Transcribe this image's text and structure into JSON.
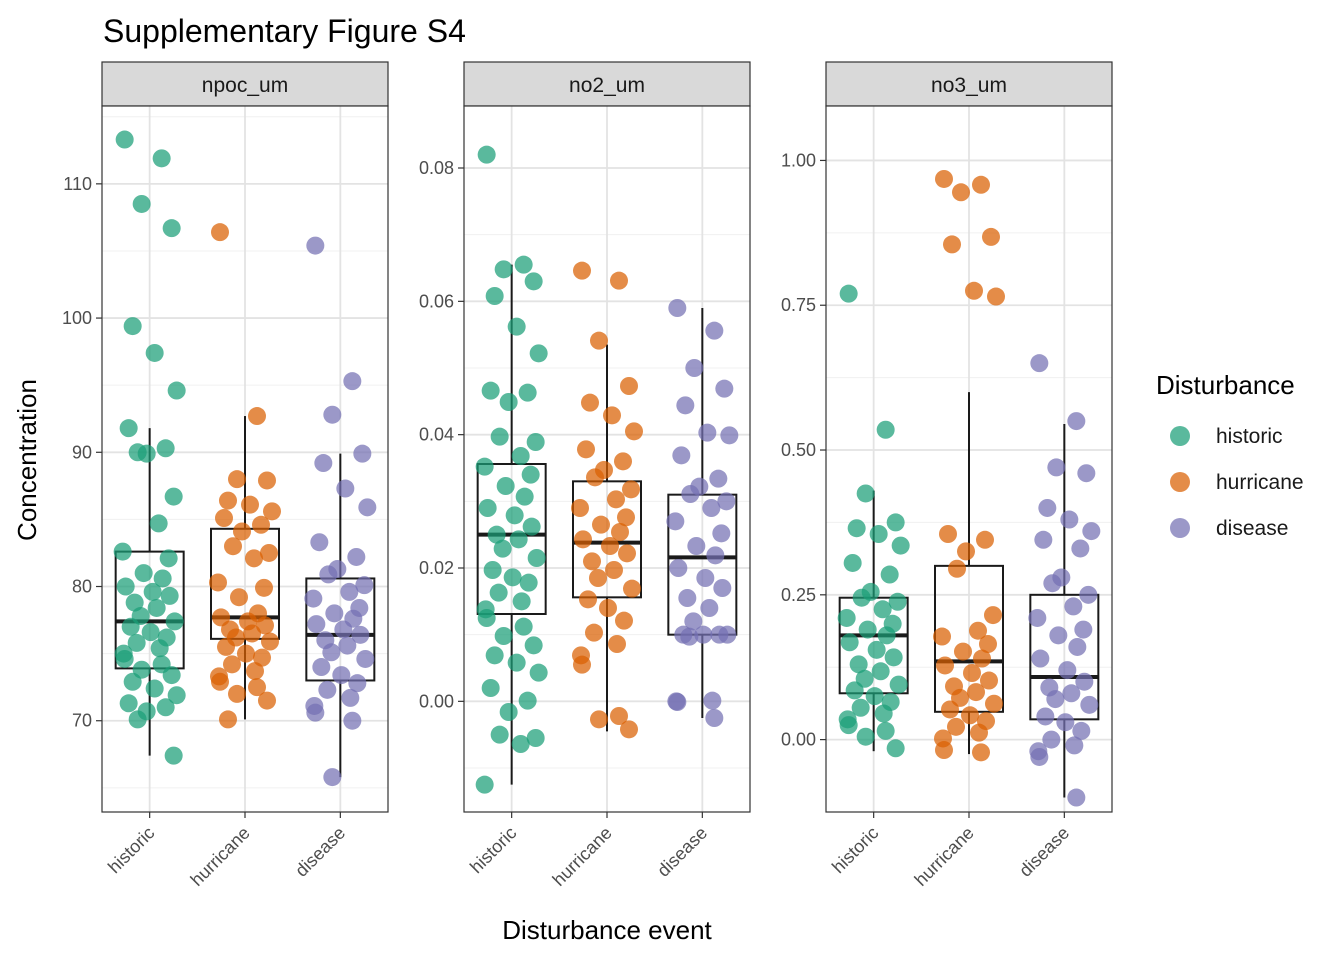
{
  "title": "Supplementary Figure S4",
  "chart_data": {
    "type": "boxplot-jitter",
    "title": "Supplementary Figure S4",
    "xlabel": "Disturbance event",
    "ylabel": "Concentration",
    "categories": [
      "historic",
      "hurricane",
      "disease"
    ],
    "legend": {
      "title": "Disturbance",
      "position": "right",
      "entries": [
        {
          "label": "historic",
          "color": "#1b9e77"
        },
        {
          "label": "hurricane",
          "color": "#d95f02"
        },
        {
          "label": "disease",
          "color": "#7570b3"
        }
      ]
    },
    "grid": true,
    "panels": [
      {
        "strip": "npoc_um",
        "ylim": [
          63.2,
          115.8
        ],
        "yticks": [
          70,
          80,
          90,
          100,
          110
        ],
        "ytick_labels": [
          "70",
          "80",
          "90",
          "100",
          "110"
        ],
        "boxes": [
          {
            "q1": 73.9,
            "median": 77.4,
            "q3": 82.6,
            "lower": 67.4,
            "upper": 91.8
          },
          {
            "q1": 76.1,
            "median": 77.7,
            "q3": 84.3,
            "lower": 70.1,
            "upper": 92.7
          },
          {
            "q1": 73.0,
            "median": 76.4,
            "q3": 80.6,
            "lower": 65.8,
            "upper": 89.9
          }
        ],
        "points": [
          [
            113.3,
            111.9,
            108.5,
            106.7,
            99.4,
            97.4,
            94.6,
            91.8,
            90.3,
            89.9,
            90.0,
            86.7,
            84.7,
            82.6,
            82.1,
            81.0,
            80.6,
            80.0,
            79.6,
            79.3,
            78.8,
            78.4,
            77.8,
            77.4,
            77.0,
            76.6,
            76.2,
            75.8,
            75.4,
            75.0,
            74.6,
            74.2,
            73.8,
            73.4,
            72.9,
            72.4,
            71.9,
            71.3,
            71.0,
            70.7,
            70.1,
            67.4
          ],
          [
            106.4,
            92.7,
            88.0,
            87.9,
            86.4,
            86.1,
            85.6,
            85.1,
            84.6,
            84.1,
            83.0,
            82.5,
            82.1,
            80.3,
            79.9,
            79.2,
            78.0,
            77.7,
            77.4,
            77.1,
            76.8,
            76.5,
            76.2,
            75.9,
            75.5,
            75.0,
            74.7,
            74.2,
            73.7,
            73.3,
            72.9,
            72.5,
            72.0,
            71.5,
            70.1
          ],
          [
            105.4,
            95.3,
            92.8,
            89.9,
            89.2,
            87.3,
            85.9,
            83.3,
            82.2,
            81.3,
            80.9,
            80.1,
            79.6,
            79.1,
            78.4,
            78.0,
            77.6,
            77.2,
            76.8,
            76.4,
            76.0,
            75.6,
            75.1,
            74.6,
            74.0,
            73.4,
            72.8,
            72.3,
            71.7,
            71.1,
            70.6,
            70.0,
            65.8
          ]
        ]
      },
      {
        "strip": "no2_um",
        "ylim": [
          -0.0166,
          0.0893
        ],
        "yticks": [
          0.0,
          0.02,
          0.04,
          0.06,
          0.08
        ],
        "ytick_labels": [
          "0.00",
          "0.02",
          "0.04",
          "0.06",
          "0.08"
        ],
        "boxes": [
          {
            "q1": 0.0131,
            "median": 0.025,
            "q3": 0.0356,
            "lower": -0.0125,
            "upper": 0.0655
          },
          {
            "q1": 0.0156,
            "median": 0.0238,
            "q3": 0.033,
            "lower": -0.0045,
            "upper": 0.0535
          },
          {
            "q1": 0.01,
            "median": 0.0216,
            "q3": 0.031,
            "lower": -0.0025,
            "upper": 0.059
          }
        ],
        "points": [
          [
            0.082,
            0.0655,
            0.0648,
            0.063,
            0.0608,
            0.0562,
            0.0522,
            0.0466,
            0.0463,
            0.0449,
            0.0397,
            0.0389,
            0.0368,
            0.0352,
            0.034,
            0.0323,
            0.0307,
            0.029,
            0.0279,
            0.0262,
            0.025,
            0.0243,
            0.0229,
            0.0215,
            0.0197,
            0.0186,
            0.0178,
            0.0163,
            0.015,
            0.0138,
            0.0125,
            0.0112,
            0.0098,
            0.0084,
            0.0069,
            0.0058,
            0.0043,
            0.002,
            0.0001,
            -0.0016,
            -0.005,
            -0.0055,
            -0.0064,
            -0.0125
          ],
          [
            0.0646,
            0.0631,
            0.0541,
            0.0473,
            0.0448,
            0.0429,
            0.0405,
            0.0378,
            0.036,
            0.0347,
            0.0336,
            0.0318,
            0.0303,
            0.029,
            0.0276,
            0.0265,
            0.0254,
            0.0243,
            0.0233,
            0.0222,
            0.021,
            0.0197,
            0.0185,
            0.0169,
            0.0153,
            0.014,
            0.0121,
            0.0103,
            0.0086,
            0.0069,
            0.0055,
            -0.0022,
            -0.0027,
            -0.0042
          ],
          [
            0.059,
            0.0556,
            0.05,
            0.0469,
            0.0444,
            0.0403,
            0.0399,
            0.0369,
            0.0334,
            0.0322,
            0.0311,
            0.03,
            0.029,
            0.027,
            0.0252,
            0.0233,
            0.0219,
            0.02,
            0.0185,
            0.017,
            0.0155,
            0.014,
            0.012,
            0.01,
            0.01,
            0.01,
            0.01,
            0.0097,
            0.0001,
            0.0,
            -0.0001,
            -0.0025
          ]
        ]
      },
      {
        "strip": "no3_um",
        "ylim": [
          -0.125,
          1.094
        ],
        "yticks": [
          0.0,
          0.25,
          0.5,
          0.75,
          1.0
        ],
        "ytick_labels": [
          "0.00",
          "0.25",
          "0.50",
          "0.75",
          "1.00"
        ],
        "boxes": [
          {
            "q1": 0.08,
            "median": 0.18,
            "q3": 0.245,
            "lower": -0.02,
            "upper": 0.43
          },
          {
            "q1": 0.048,
            "median": 0.135,
            "q3": 0.3,
            "lower": -0.025,
            "upper": 0.6
          },
          {
            "q1": 0.035,
            "median": 0.108,
            "q3": 0.25,
            "lower": -0.1,
            "upper": 0.545
          }
        ],
        "points": [
          [
            0.77,
            0.535,
            0.425,
            0.375,
            0.365,
            0.355,
            0.335,
            0.305,
            0.285,
            0.255,
            0.245,
            0.238,
            0.225,
            0.21,
            0.2,
            0.19,
            0.18,
            0.168,
            0.155,
            0.142,
            0.13,
            0.118,
            0.105,
            0.095,
            0.085,
            0.075,
            0.065,
            0.055,
            0.045,
            0.035,
            0.025,
            0.015,
            0.005,
            -0.015
          ],
          [
            0.968,
            0.958,
            0.945,
            0.868,
            0.855,
            0.775,
            0.765,
            0.355,
            0.345,
            0.325,
            0.295,
            0.215,
            0.188,
            0.178,
            0.165,
            0.152,
            0.14,
            0.128,
            0.115,
            0.102,
            0.092,
            0.082,
            0.072,
            0.062,
            0.052,
            0.042,
            0.032,
            0.022,
            0.012,
            0.002,
            -0.018,
            -0.022
          ],
          [
            0.65,
            0.55,
            0.47,
            0.46,
            0.4,
            0.38,
            0.36,
            0.345,
            0.33,
            0.28,
            0.27,
            0.25,
            0.23,
            0.21,
            0.19,
            0.18,
            0.16,
            0.14,
            0.12,
            0.1,
            0.09,
            0.08,
            0.07,
            0.06,
            0.04,
            0.03,
            0.015,
            0.0,
            -0.01,
            -0.02,
            -0.03,
            -0.1
          ]
        ]
      }
    ]
  }
}
